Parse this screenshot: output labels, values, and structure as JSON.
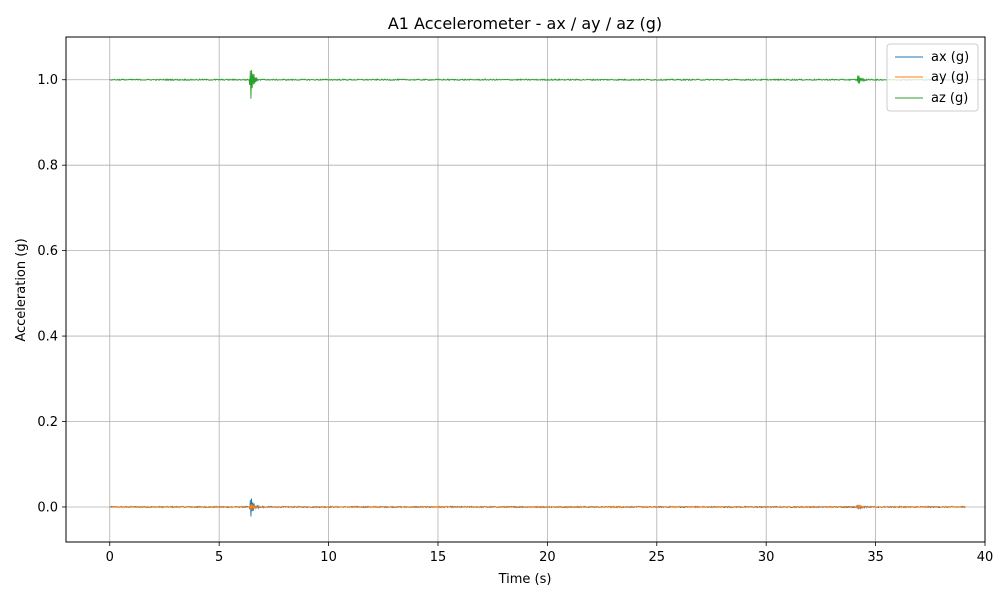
{
  "chart_data": {
    "type": "line",
    "title": "A1 Accelerometer - ax / ay / az (g)",
    "xlabel": "Time (s)",
    "ylabel": "Acceleration (g)",
    "xlim": [
      -2,
      40.0
    ],
    "ylim": [
      -0.082,
      1.1
    ],
    "x_ticks": [
      0,
      5,
      10,
      15,
      20,
      25,
      30,
      35,
      40
    ],
    "y_ticks": [
      0.0,
      0.2,
      0.4,
      0.6,
      0.8,
      1.0
    ],
    "x_tick_labels": [
      "0",
      "5",
      "10",
      "15",
      "20",
      "25",
      "30",
      "35",
      "40"
    ],
    "y_tick_labels": [
      "0.0",
      "0.2",
      "0.4",
      "0.6",
      "0.8",
      "1.0"
    ],
    "grid": true,
    "legend_position": "top-right",
    "x_range": [
      0,
      39.1
    ],
    "series": [
      {
        "name": "ax (g)",
        "color": "#1f77b4",
        "baseline": 0.0,
        "noise": 0.0015,
        "events": [
          {
            "t": 6.45,
            "amplitude": 0.028
          },
          {
            "t": 34.2,
            "amplitude": 0.008
          }
        ]
      },
      {
        "name": "ay (g)",
        "color": "#ff7f0e",
        "baseline": 0.0,
        "noise": 0.0015,
        "events": [
          {
            "t": 6.45,
            "amplitude": 0.01
          },
          {
            "t": 34.2,
            "amplitude": 0.006
          }
        ]
      },
      {
        "name": "az (g)",
        "color": "#2ca02c",
        "baseline": 1.0,
        "noise": 0.0015,
        "events": [
          {
            "t": 6.45,
            "amplitude": 0.045
          },
          {
            "t": 34.2,
            "amplitude": 0.014
          }
        ]
      }
    ]
  }
}
